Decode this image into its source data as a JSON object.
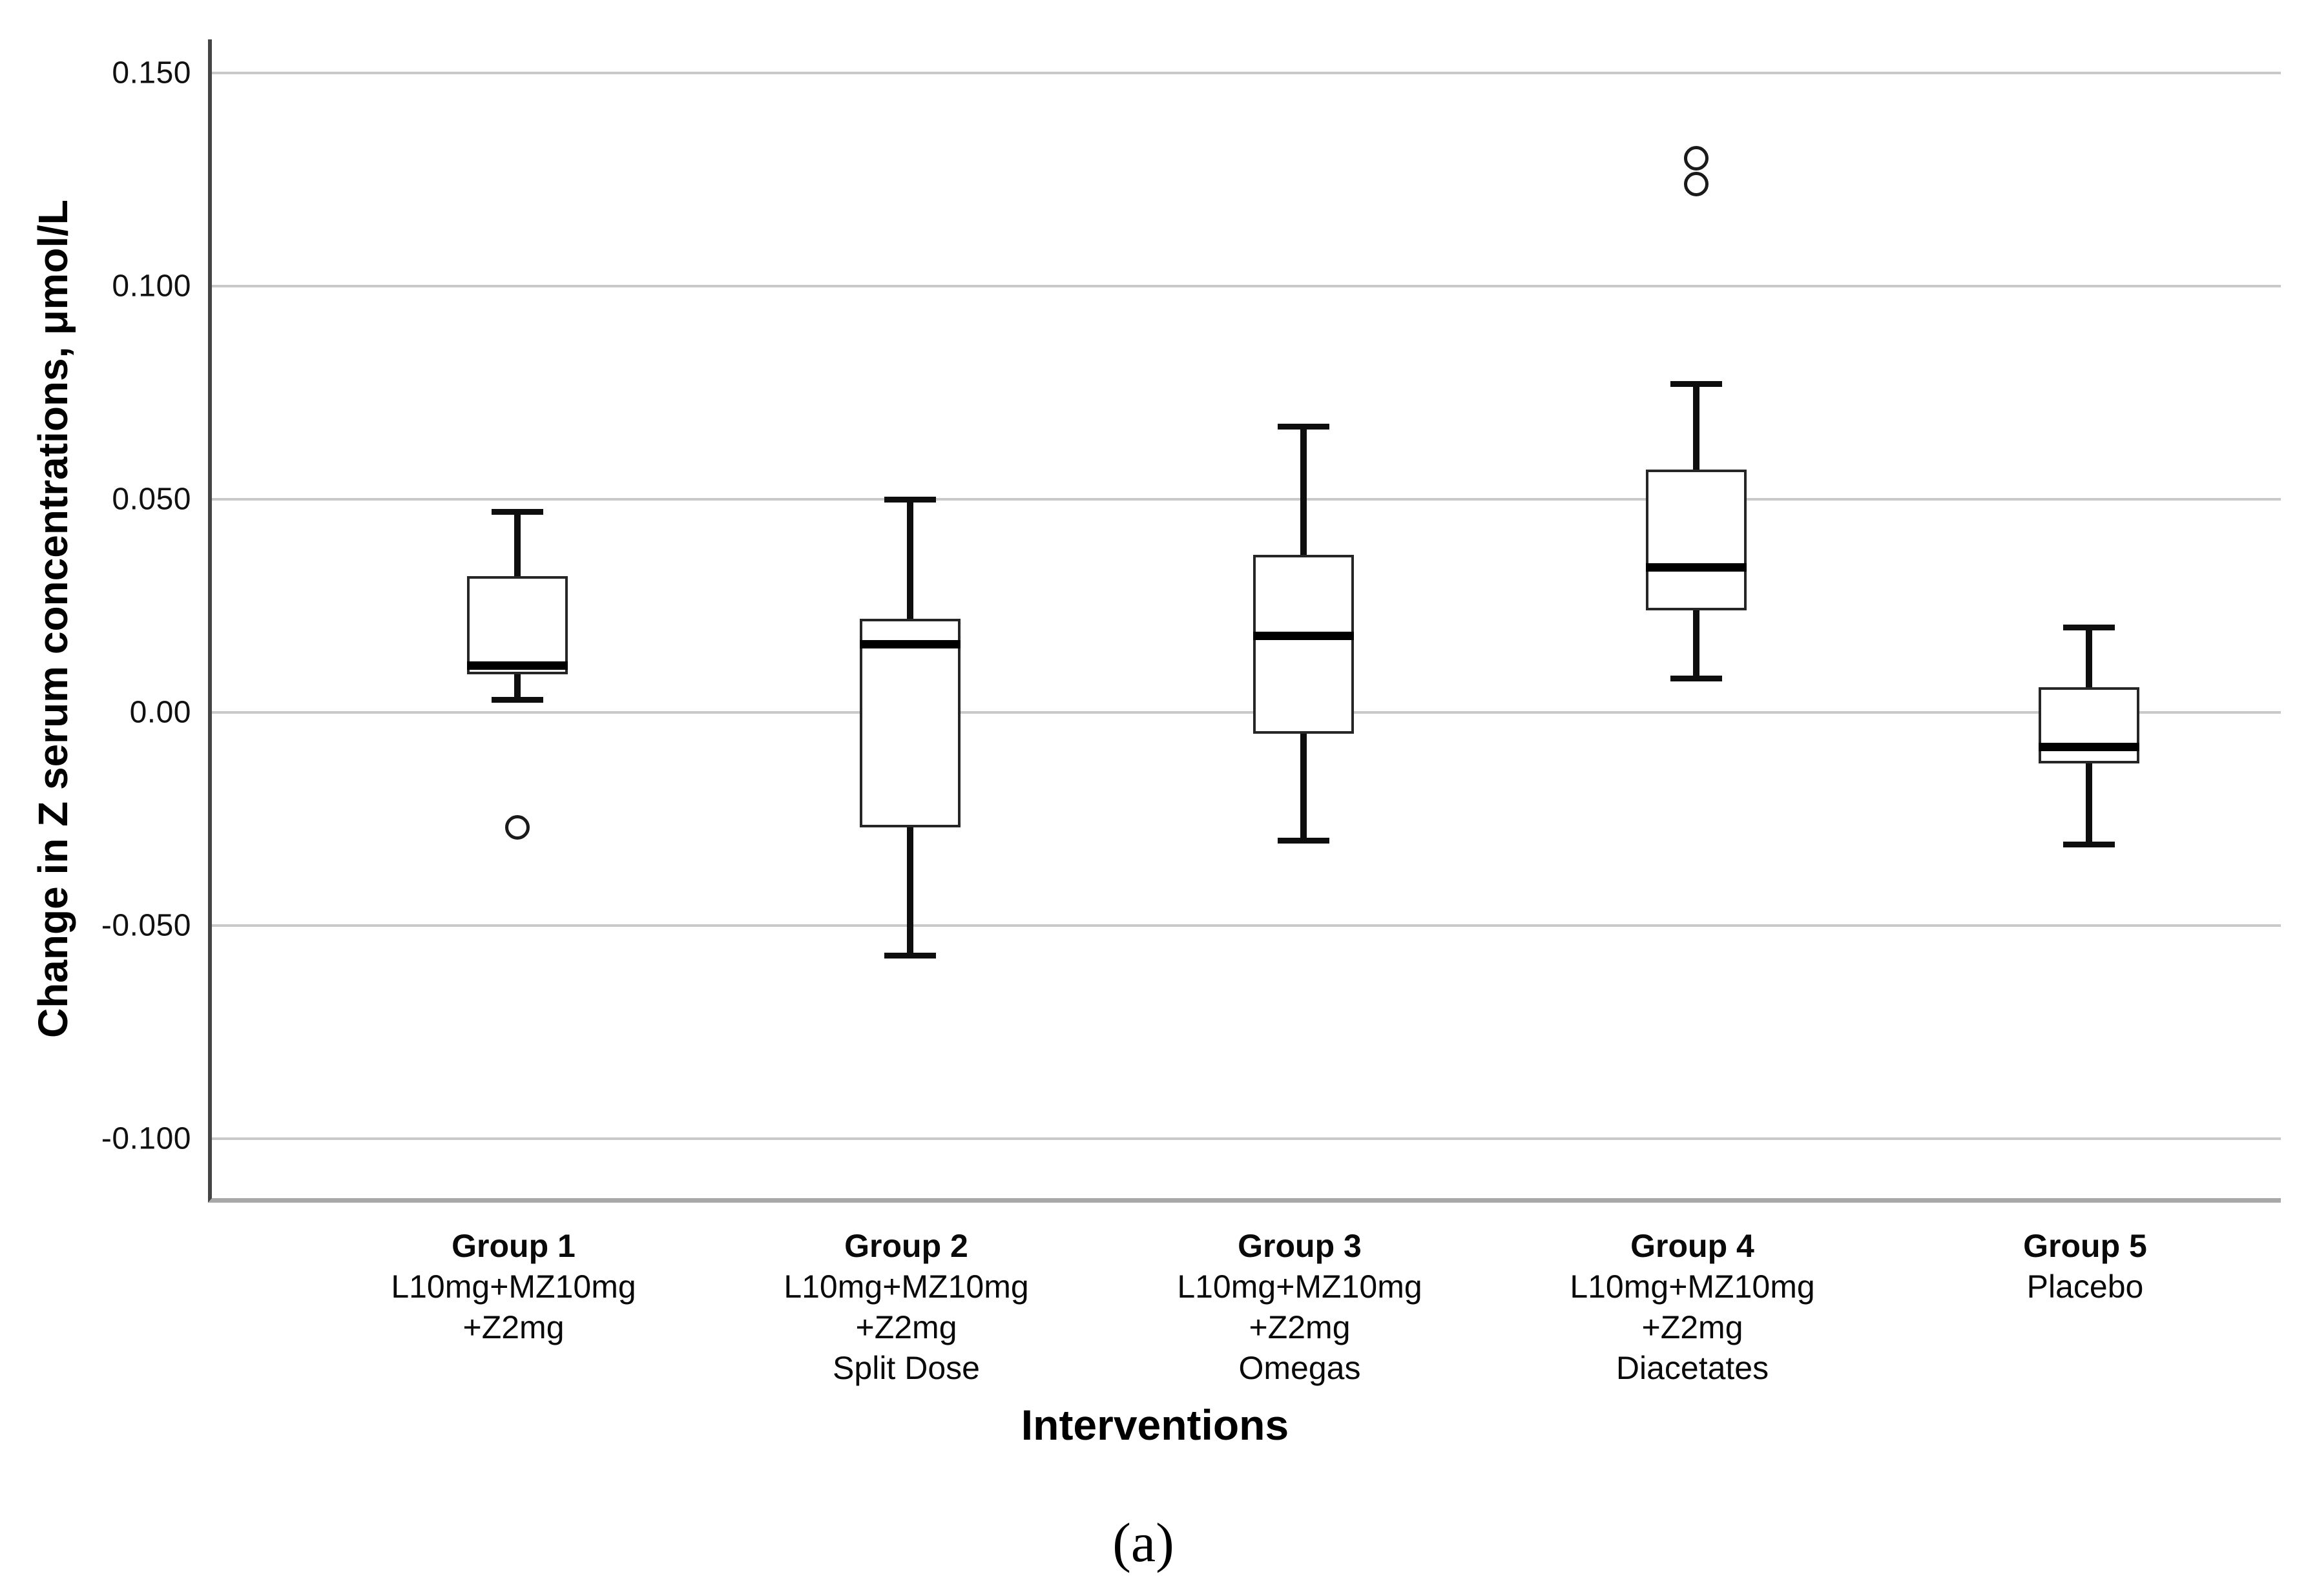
{
  "figure": {
    "caption": "(a)"
  },
  "chart_data": {
    "type": "boxplot",
    "title": "",
    "xlabel": "Interventions",
    "ylabel": "Change in Z serum concentrations, μmol/L",
    "ylim": [
      -0.1139,
      0.1579
    ],
    "grid": "horizontal",
    "legend_position": "none",
    "yticks": [
      {
        "label": "0.150",
        "value": 0.15
      },
      {
        "label": "0.100",
        "value": 0.1
      },
      {
        "label": "0.050",
        "value": 0.05
      },
      {
        "label": "0.00",
        "value": 0.0
      },
      {
        "label": "-0.050",
        "value": -0.05
      },
      {
        "label": "-0.100",
        "value": -0.1
      }
    ],
    "groups": [
      {
        "name": "Group 1",
        "label_lines": [
          "Group 1",
          "L10mg+MZ10mg",
          "+Z2mg"
        ],
        "box": {
          "whisker_low": 0.003,
          "q1": 0.009,
          "median": 0.011,
          "q3": 0.032,
          "whisker_high": 0.047
        },
        "outliers": [
          -0.027
        ]
      },
      {
        "name": "Group 2",
        "label_lines": [
          "Group 2",
          "L10mg+MZ10mg",
          "+Z2mg",
          "Split Dose"
        ],
        "box": {
          "whisker_low": -0.057,
          "q1": -0.027,
          "median": 0.016,
          "q3": 0.022,
          "whisker_high": 0.05
        },
        "outliers": []
      },
      {
        "name": "Group 3",
        "label_lines": [
          "Group 3",
          "L10mg+MZ10mg",
          "+Z2mg",
          "Omegas"
        ],
        "box": {
          "whisker_low": -0.03,
          "q1": -0.005,
          "median": 0.018,
          "q3": 0.037,
          "whisker_high": 0.067
        },
        "outliers": []
      },
      {
        "name": "Group 4",
        "label_lines": [
          "Group 4",
          "L10mg+MZ10mg",
          "+Z2mg",
          "Diacetates"
        ],
        "box": {
          "whisker_low": 0.008,
          "q1": 0.024,
          "median": 0.034,
          "q3": 0.057,
          "whisker_high": 0.077
        },
        "outliers": [
          0.124,
          0.13
        ]
      },
      {
        "name": "Group 5",
        "label_lines": [
          "Group 5",
          "Placebo"
        ],
        "box": {
          "whisker_low": -0.031,
          "q1": -0.012,
          "median": -0.008,
          "q3": 0.006,
          "whisker_high": 0.02
        },
        "outliers": []
      }
    ]
  },
  "colors": {
    "axis_line": "#454545",
    "baseline": "#a8a8a8",
    "gridline": "#c9c9c9",
    "box_border": "#262626",
    "box_fill": "#ffffff",
    "median": "#000000",
    "whisker": "#0e0e0e",
    "outlier_stroke": "#1a1a1a",
    "text": "#000000"
  }
}
